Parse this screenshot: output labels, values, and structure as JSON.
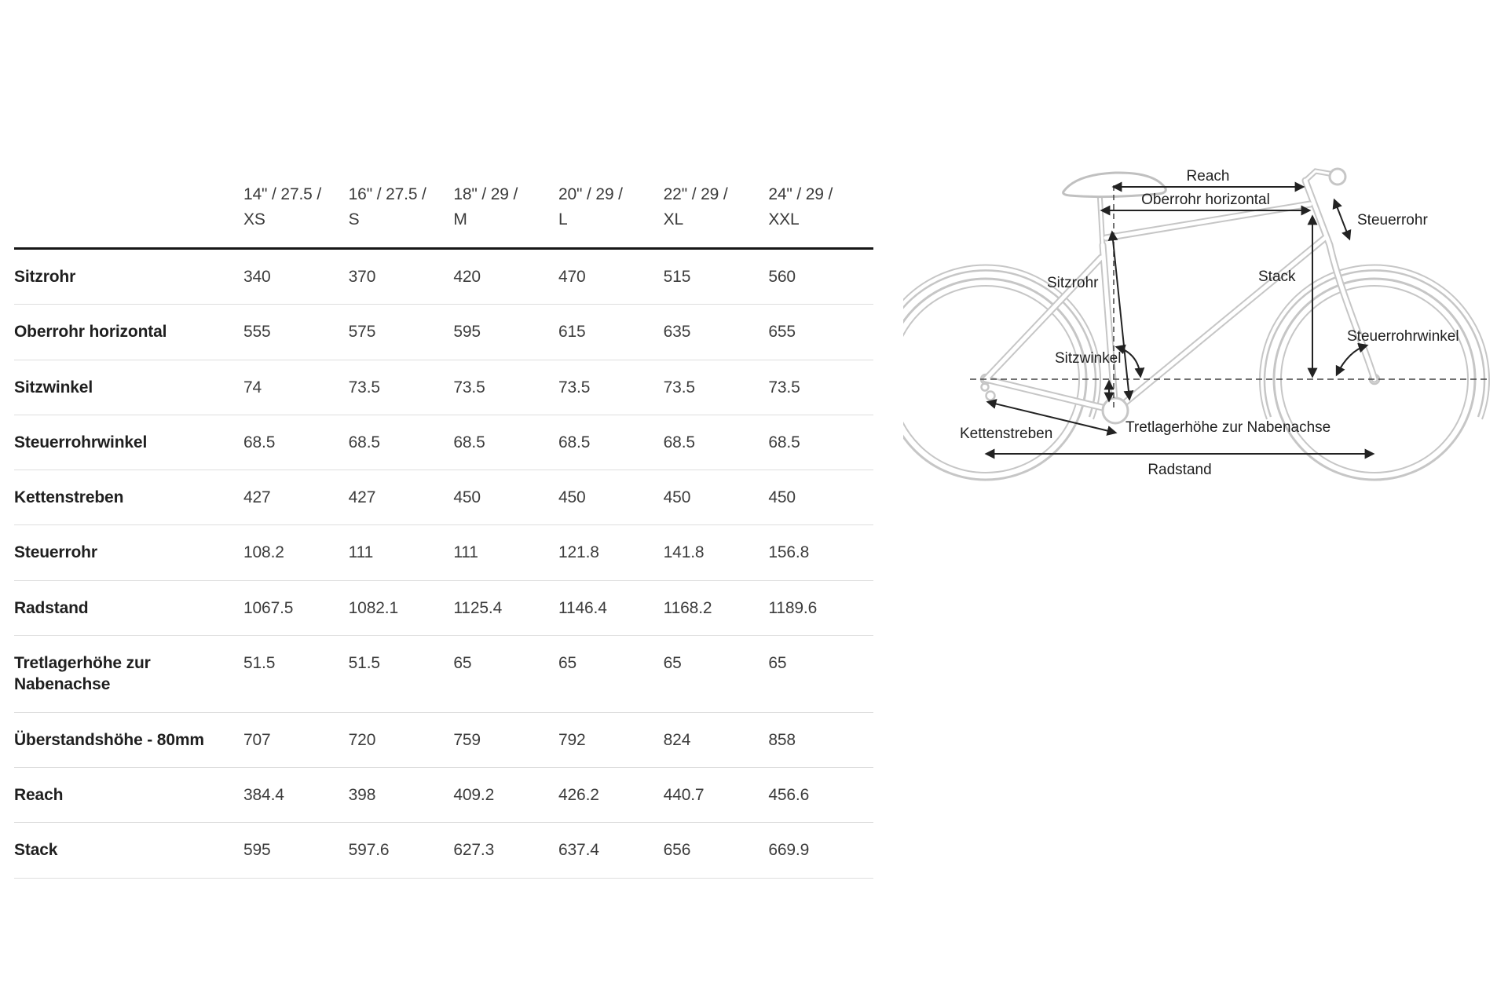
{
  "page": {
    "background": "#ffffff"
  },
  "colors": {
    "header_rule": "#161616",
    "row_rule": "#dedede",
    "label_text": "#1f1f1f",
    "value_text": "#3c3c3c",
    "bike_outline": "#c6c6c6",
    "annotation": "#222222"
  },
  "table": {
    "columns": [
      {
        "size": "14\" / 27.5 /",
        "code": "XS"
      },
      {
        "size": "16\" / 27.5 /",
        "code": "S"
      },
      {
        "size": "18\" / 29 /",
        "code": "M"
      },
      {
        "size": "20\" / 29 /",
        "code": "L"
      },
      {
        "size": "22\" / 29 /",
        "code": "XL"
      },
      {
        "size": "24\" / 29 /",
        "code": "XXL"
      }
    ],
    "rows": [
      {
        "label": "Sitzrohr",
        "values": [
          "340",
          "370",
          "420",
          "470",
          "515",
          "560"
        ]
      },
      {
        "label": "Oberrohr horizontal",
        "values": [
          "555",
          "575",
          "595",
          "615",
          "635",
          "655"
        ]
      },
      {
        "label": "Sitzwinkel",
        "values": [
          "74",
          "73.5",
          "73.5",
          "73.5",
          "73.5",
          "73.5"
        ]
      },
      {
        "label": "Steuerrohrwinkel",
        "values": [
          "68.5",
          "68.5",
          "68.5",
          "68.5",
          "68.5",
          "68.5"
        ]
      },
      {
        "label": "Kettenstreben",
        "values": [
          "427",
          "427",
          "450",
          "450",
          "450",
          "450"
        ]
      },
      {
        "label": "Steuerrohr",
        "values": [
          "108.2",
          "111",
          "111",
          "121.8",
          "141.8",
          "156.8"
        ]
      },
      {
        "label": "Radstand",
        "values": [
          "1067.5",
          "1082.1",
          "1125.4",
          "1146.4",
          "1168.2",
          "1189.6"
        ]
      },
      {
        "label": "Tretlagerhöhe zur Nabenachse",
        "values": [
          "51.5",
          "51.5",
          "65",
          "65",
          "65",
          "65"
        ]
      },
      {
        "label": "Überstandshöhe - 80mm",
        "values": [
          "707",
          "720",
          "759",
          "792",
          "824",
          "858"
        ]
      },
      {
        "label": "Reach",
        "values": [
          "384.4",
          "398",
          "409.2",
          "426.2",
          "440.7",
          "456.6"
        ]
      },
      {
        "label": "Stack",
        "values": [
          "595",
          "597.6",
          "627.3",
          "637.4",
          "656",
          "669.9"
        ]
      }
    ]
  },
  "diagram": {
    "labels": {
      "reach": "Reach",
      "oberrohr": "Oberrohr horizontal",
      "steuerrohr": "Steuerrohr",
      "sitzrohr": "Sitzrohr",
      "stack": "Stack",
      "steuerrohrwinkel": "Steuerrohrwinkel",
      "sitzwinkel": "Sitzwinkel",
      "kettenstreben": "Kettenstreben",
      "tretlagerhoehe": "Tretlagerhöhe zur Nabenachse",
      "radstand": "Radstand"
    }
  },
  "chart_data": {
    "type": "table",
    "columns": [
      "",
      "14\" / 27.5 / XS",
      "16\" / 27.5 / S",
      "18\" / 29 / M",
      "20\" / 29 / L",
      "22\" / 29 / XL",
      "24\" / 29 / XXL"
    ],
    "rows": [
      [
        "Sitzrohr",
        340,
        370,
        420,
        470,
        515,
        560
      ],
      [
        "Oberrohr horizontal",
        555,
        575,
        595,
        615,
        635,
        655
      ],
      [
        "Sitzwinkel",
        74,
        73.5,
        73.5,
        73.5,
        73.5,
        73.5
      ],
      [
        "Steuerrohrwinkel",
        68.5,
        68.5,
        68.5,
        68.5,
        68.5,
        68.5
      ],
      [
        "Kettenstreben",
        427,
        427,
        450,
        450,
        450,
        450
      ],
      [
        "Steuerrohr",
        108.2,
        111,
        111,
        121.8,
        141.8,
        156.8
      ],
      [
        "Radstand",
        1067.5,
        1082.1,
        1125.4,
        1146.4,
        1168.2,
        1189.6
      ],
      [
        "Tretlagerhöhe zur Nabenachse",
        51.5,
        51.5,
        65,
        65,
        65,
        65
      ],
      [
        "Überstandshöhe - 80mm",
        707,
        720,
        759,
        792,
        824,
        858
      ],
      [
        "Reach",
        384.4,
        398,
        409.2,
        426.2,
        440.7,
        456.6
      ],
      [
        "Stack",
        595,
        597.6,
        627.3,
        637.4,
        656,
        669.9
      ]
    ]
  }
}
